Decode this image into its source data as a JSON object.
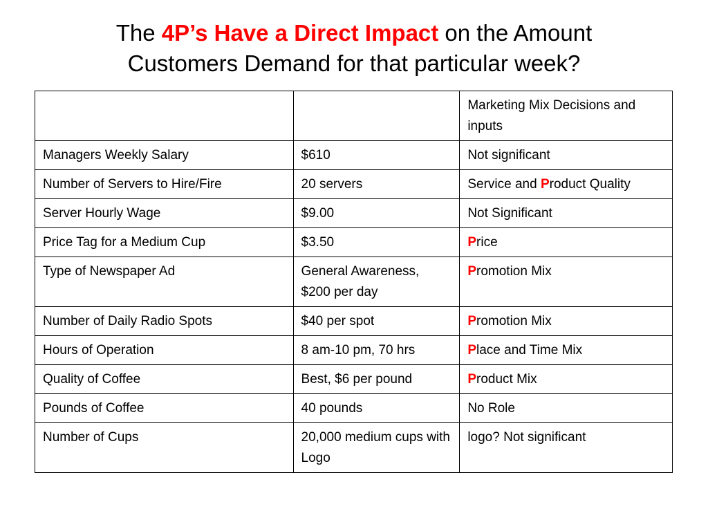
{
  "title": {
    "prefix": "The ",
    "highlight": "4P’s Have a Direct Impact",
    "suffix": " on the Amount",
    "line2": "Customers Demand for that particular week?"
  },
  "table": {
    "header": [
      "",
      "",
      "Marketing Mix Decisions and inputs"
    ],
    "rows": [
      {
        "input": "Managers Weekly Salary",
        "value": "$610",
        "p_letter": "",
        "mix": "Not significant"
      },
      {
        "input": "Number of Servers to Hire/Fire",
        "value": "20 servers",
        "mix_before": "Service and ",
        "p_letter": "P",
        "mix": "roduct Quality"
      },
      {
        "input": "Server Hourly Wage",
        "value": "$9.00",
        "p_letter": "",
        "mix": "Not Significant"
      },
      {
        "input": "Price Tag for a Medium Cup",
        "value": "$3.50",
        "p_letter": "P",
        "mix": "rice"
      },
      {
        "input": "Type of Newspaper Ad",
        "value": "General Awareness, $200 per day",
        "p_letter": "P",
        "mix": "romotion Mix"
      },
      {
        "input": "Number of Daily Radio Spots",
        "value": "$40 per spot",
        "p_letter": "P",
        "mix": "romotion Mix"
      },
      {
        "input": "Hours of Operation",
        "value": "8 am-10 pm, 70 hrs",
        "p_letter": "P",
        "mix": "lace and Time Mix"
      },
      {
        "input": "Quality of Coffee",
        "value": "Best, $6 per pound",
        "p_letter": "P",
        "mix": "roduct Mix"
      },
      {
        "input": "Pounds of Coffee",
        "value": "40 pounds",
        "p_letter": "",
        "mix": "No Role"
      },
      {
        "input": "Number of Cups",
        "value": "20,000 medium cups with Logo",
        "p_letter": "",
        "mix": "logo? Not significant"
      }
    ]
  },
  "colors": {
    "highlight": "#ff0000",
    "text": "#000000",
    "background": "#ffffff"
  }
}
